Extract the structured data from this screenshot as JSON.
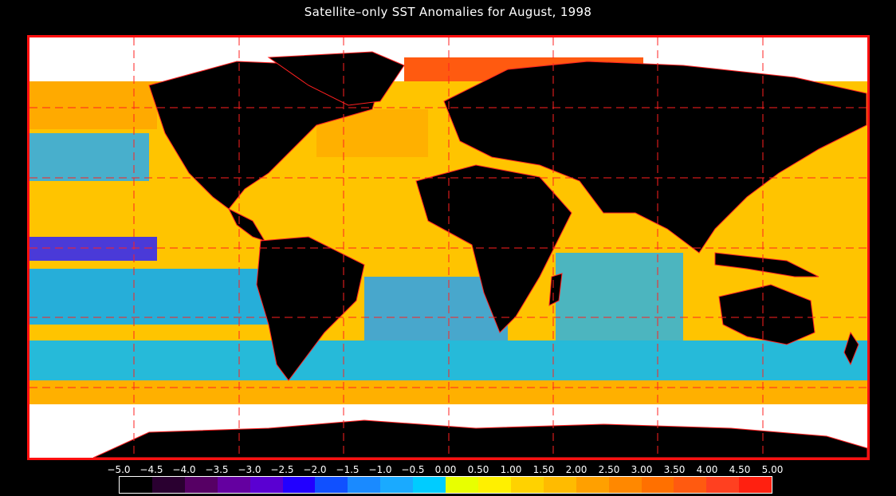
{
  "title": "Satellite–only SST Anomalies for August, 1998",
  "colorbar": {
    "ticks": [
      "−5.0",
      "−4.5",
      "−4.0",
      "−3.5",
      "−3.0",
      "−2.5",
      "−2.0",
      "−1.5",
      "−1.0",
      "−0.5",
      "0.00",
      "0.50",
      "1.00",
      "1.50",
      "2.00",
      "2.50",
      "3.00",
      "3.50",
      "4.00",
      "4.50",
      "5.00"
    ],
    "colors": [
      "#000000",
      "#2a0030",
      "#560064",
      "#6400a0",
      "#5a00d2",
      "#2200ff",
      "#1050ff",
      "#1a8aff",
      "#1aaaff",
      "#00ccff",
      "#e8ff00",
      "#fff000",
      "#ffd200",
      "#ffbb00",
      "#ffa000",
      "#ff8800",
      "#ff7000",
      "#ff5a10",
      "#ff4020",
      "#ff2010"
    ]
  },
  "map": {
    "frame_color": "#ff1010",
    "grid_color": "#ff2020",
    "land_color": "#000000",
    "ice_color": "#ffffff"
  }
}
